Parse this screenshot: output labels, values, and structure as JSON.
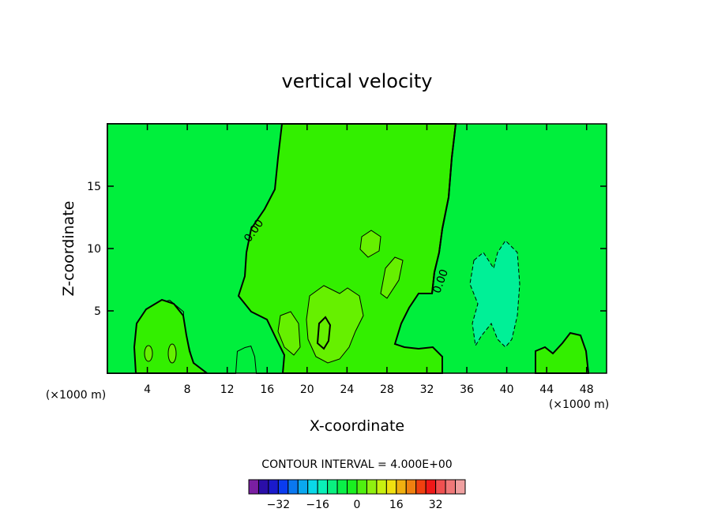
{
  "chart_data": {
    "type": "contour",
    "title": "vertical velocity",
    "xlabel": "X-coordinate",
    "ylabel": "Z-coordinate",
    "x_unit": "(×1000 m)",
    "y_unit": "(×1000 m)",
    "xlim": [
      0,
      50
    ],
    "ylim": [
      0,
      20
    ],
    "x_ticks": [
      4,
      8,
      12,
      16,
      20,
      24,
      28,
      32,
      36,
      40,
      44,
      48
    ],
    "y_ticks": [
      5,
      10,
      15
    ],
    "contour_label": "0.00",
    "contour_interval_text": "CONTOUR INTERVAL = 4.000E+00",
    "colorbar": {
      "ticks": [
        -32,
        -16,
        0,
        16,
        32
      ],
      "colors": [
        "#7a1fa2",
        "#2a0ea8",
        "#1a1acc",
        "#0a3cf0",
        "#0a78f0",
        "#0aa8f0",
        "#0ad8e8",
        "#0af0b8",
        "#0af080",
        "#0af048",
        "#1af020",
        "#50f010",
        "#90f010",
        "#c8f010",
        "#f0e010",
        "#f0b010",
        "#f08010",
        "#f04010",
        "#f01818",
        "#f05050",
        "#f07878",
        "#f0a0a0"
      ],
      "fill_colors": {
        "background": "#00ef3c",
        "positive_plume": "#33ef00",
        "positive_core": "#66f000",
        "negative_core": "#00f097"
      }
    }
  }
}
